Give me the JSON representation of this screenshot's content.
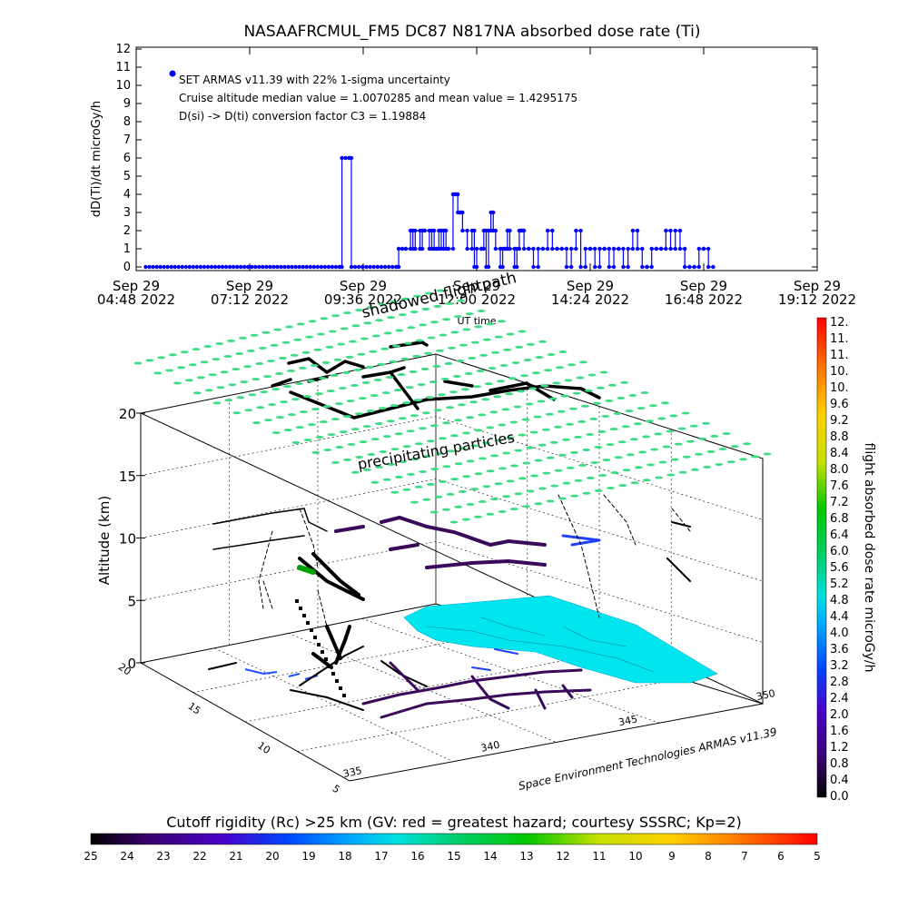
{
  "chart_data": [
    {
      "type": "line",
      "title": "NASAAFRCMUL_FM5 DC87 N817NA absorbed dose rate (Ti)",
      "ylabel": "dD(Ti)/dt microGy/h",
      "xlabel": "UT time",
      "ylim": [
        0,
        12
      ],
      "y_ticks": [
        "0",
        "1",
        "2",
        "3",
        "4",
        "5",
        "6",
        "7",
        "8",
        "9",
        "10",
        "11",
        "12"
      ],
      "x_ticks": [
        {
          "line1": "Sep 29",
          "line2": "04:48 2022"
        },
        {
          "line1": "Sep 29",
          "line2": "07:12 2022"
        },
        {
          "line1": "Sep 29",
          "line2": "09:36 2022"
        },
        {
          "line1": "Sep 29",
          "line2": "12:00 2022"
        },
        {
          "line1": "Sep 29",
          "line2": "14:24 2022"
        },
        {
          "line1": "Sep 29",
          "line2": "16:48 2022"
        },
        {
          "line1": "Sep 29",
          "line2": "19:12 2022"
        }
      ],
      "x_hours": [
        4.8,
        7.2,
        9.6,
        12.0,
        14.4,
        16.8,
        19.2
      ],
      "annotations": [
        "SET ARMAS v11.39 with 22% 1-sigma uncertainty",
        "Cruise altitude median value = 1.0070285 and mean value = 1.4295175",
        "D(si) -> D(ti) conversion factor C3 = 1.19884"
      ],
      "series": [
        {
          "name": "SET ARMAS v11.39",
          "color": "#0000ff",
          "x_hours": [
            5.0,
            9.1,
            9.15,
            9.3,
            9.35,
            10.3,
            10.35,
            10.5,
            10.6,
            10.65,
            10.7,
            10.8,
            10.85,
            10.9,
            11.0,
            11.05,
            11.1,
            11.15,
            11.2,
            11.25,
            11.3,
            11.35,
            11.4,
            11.5,
            11.55,
            11.6,
            11.65,
            11.7,
            11.8,
            11.9,
            11.95,
            12.0,
            12.1,
            12.15,
            12.2,
            12.25,
            12.3,
            12.35,
            12.4,
            12.5,
            12.55,
            12.6,
            12.65,
            12.7,
            12.8,
            12.85,
            12.9,
            12.95,
            13.0,
            13.1,
            13.2,
            13.3,
            13.4,
            13.5,
            13.6,
            13.7,
            13.8,
            13.9,
            14.0,
            14.1,
            14.2,
            14.3,
            14.4,
            14.5,
            14.6,
            14.7,
            14.8,
            14.9,
            15.0,
            15.1,
            15.2,
            15.3,
            15.4,
            15.5,
            15.6,
            15.7,
            15.8,
            15.9,
            16.0,
            16.1,
            16.2,
            16.3,
            16.4,
            16.5,
            16.6,
            16.7,
            16.8,
            16.9,
            17.0
          ],
          "values": [
            0,
            0,
            6,
            6,
            0,
            0,
            1,
            1,
            2,
            1,
            2,
            1,
            2,
            2,
            1,
            2,
            1,
            1,
            2,
            1,
            2,
            1,
            1,
            4,
            4,
            3,
            3,
            2,
            1,
            2,
            0,
            1,
            1,
            2,
            0,
            2,
            3,
            2,
            1,
            0,
            1,
            1,
            2,
            1,
            0,
            1,
            2,
            2,
            1,
            1,
            0,
            1,
            1,
            2,
            1,
            1,
            1,
            0,
            1,
            2,
            0,
            1,
            1,
            0,
            1,
            1,
            0,
            1,
            1,
            0,
            1,
            2,
            1,
            0,
            0,
            1,
            1,
            1,
            2,
            1,
            2,
            1,
            0,
            0,
            0,
            1,
            1,
            0,
            0
          ]
        }
      ]
    },
    {
      "type": "surface3d",
      "zlabel": "Altitude (km)",
      "z_ticks": [
        "0",
        "5",
        "10",
        "15",
        "20"
      ],
      "lat_ticks": [
        "20",
        "15",
        "10",
        "5"
      ],
      "lon_ticks": [
        "335",
        "340",
        "345",
        "350"
      ],
      "labels": {
        "shadowed": "shadowed flightpath",
        "precipitating": "precipitating particles",
        "credit": "Space Environment Technologies ARMAS v11.39"
      },
      "land_color": "#00e5ee",
      "particle_color": "#3ddc84"
    },
    {
      "type": "colorbar",
      "orientation": "vertical",
      "label": "flight absorbed dose rate microGy/h",
      "ticks": [
        "12.",
        "11.",
        "11.",
        "10.",
        "10.",
        "9.6",
        "9.2",
        "8.8",
        "8.4",
        "8.0",
        "7.6",
        "7.2",
        "6.8",
        "6.4",
        "6.0",
        "5.6",
        "5.2",
        "4.8",
        "4.4",
        "4.0",
        "3.6",
        "3.2",
        "2.8",
        "2.4",
        "2.0",
        "1.6",
        "1.2",
        "0.8",
        "0.4",
        "0.0"
      ]
    },
    {
      "type": "colorbar",
      "orientation": "horizontal",
      "label": "Cutoff rigidity (Rc) >25 km (GV: red = greatest hazard; courtesy SSSRC; Kp=2)",
      "ticks": [
        "25",
        "24",
        "23",
        "22",
        "21",
        "20",
        "19",
        "18",
        "17",
        "16",
        "15",
        "14",
        "13",
        "12",
        "11",
        "10",
        "9",
        "8",
        "7",
        "6",
        "5"
      ]
    }
  ]
}
